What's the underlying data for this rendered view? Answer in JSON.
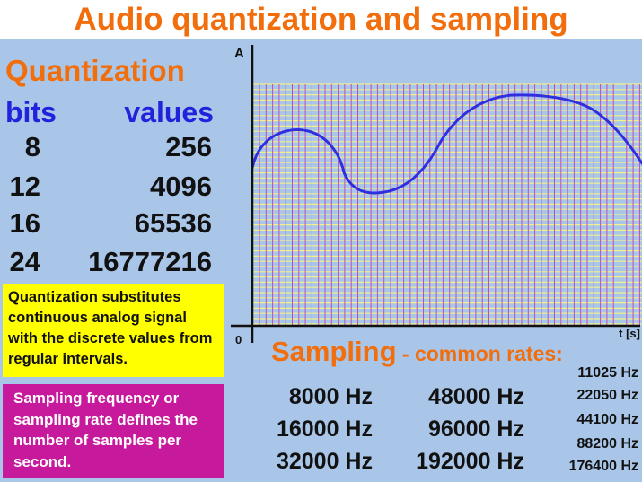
{
  "title": "Audio quantization and sampling",
  "quantization": {
    "heading": "Quantization",
    "bits_header": "bits",
    "values_header": "values",
    "rows": [
      {
        "bits": "8",
        "values": "256"
      },
      {
        "bits": "12",
        "values": "4096"
      },
      {
        "bits": "16",
        "values": "65536"
      },
      {
        "bits": "24",
        "values": "16777216"
      }
    ],
    "note": "Quantization substitutes continuous analog signal with the discrete values from regular intervals."
  },
  "sampling_note": "Sampling frequency or sampling rate defines the number of samples per second.",
  "chart": {
    "y_label": "A",
    "x_label": "t [s]",
    "origin_label": "0",
    "colors": {
      "curve": "#2f2fe0",
      "vgrid": "#c04bc0",
      "hgrid": "#f2f28a",
      "bg": "#a9c6e8"
    }
  },
  "sampling": {
    "heading": "Sampling",
    "subheading": " - common rates:",
    "rates_left": [
      "8000 Hz",
      "16000 Hz",
      "32000 Hz"
    ],
    "rates_mid": [
      "48000 Hz",
      "96000 Hz",
      "192000 Hz"
    ],
    "rates_right": [
      "11025 Hz",
      "22050 Hz",
      "44100 Hz",
      "88200 Hz",
      "176400 Hz"
    ]
  }
}
